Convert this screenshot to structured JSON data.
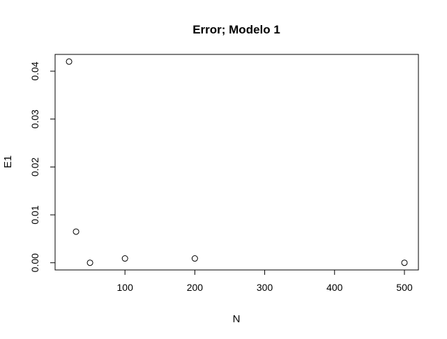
{
  "chart_data": {
    "type": "scatter",
    "title": "Error; Modelo 1",
    "xlabel": "N",
    "ylabel": "E1",
    "x_ticks": [
      100,
      200,
      300,
      400,
      500
    ],
    "y_ticks": [
      0.0,
      0.01,
      0.02,
      0.03,
      0.04
    ],
    "x_tick_labels": [
      "100",
      "200",
      "300",
      "400",
      "500"
    ],
    "y_tick_labels": [
      "0.00",
      "0.01",
      "0.02",
      "0.03",
      "0.04"
    ],
    "xlim": [
      0,
      520
    ],
    "ylim": [
      -0.0015,
      0.0435
    ],
    "marker": "open-circle",
    "grid": false,
    "points": [
      {
        "x": 20,
        "y": 0.042
      },
      {
        "x": 30,
        "y": 0.0065
      },
      {
        "x": 50,
        "y": 0.0
      },
      {
        "x": 100,
        "y": 0.0009
      },
      {
        "x": 200,
        "y": 0.0009
      },
      {
        "x": 500,
        "y": 0.0
      }
    ]
  }
}
